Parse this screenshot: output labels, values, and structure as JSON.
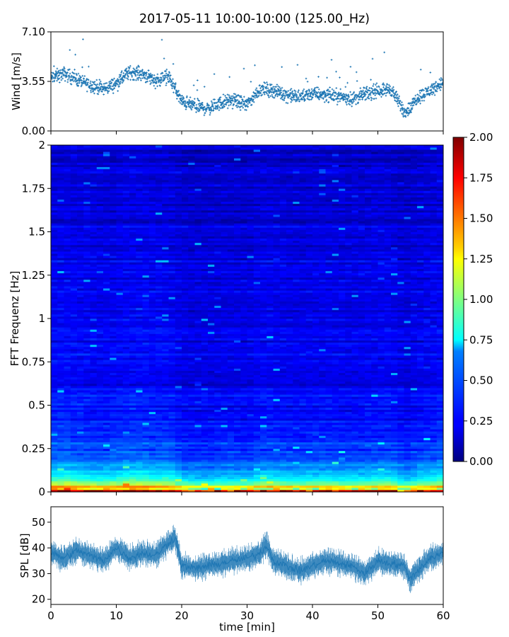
{
  "figure": {
    "title": "2017-05-11 10:00-10:00 (125.00_Hz)"
  },
  "colors": {
    "series": "#1f77b4",
    "colormap": "jet"
  },
  "chart_data": [
    {
      "id": "wind",
      "type": "scatter",
      "ylabel": "Wind [m/s]",
      "xlabel": "",
      "xlim": [
        0,
        60
      ],
      "ylim": [
        0,
        7.1
      ],
      "yticks": [
        0.0,
        3.55,
        7.1
      ],
      "ytick_labels": [
        "0.00",
        "3.55",
        "7.10"
      ],
      "xticks": [
        0,
        10,
        20,
        30,
        40,
        50,
        60
      ],
      "xtick_labels_visible": false,
      "marker": "+",
      "series": [
        {
          "x": [
            0,
            2,
            4,
            6,
            8,
            10,
            12,
            14,
            16,
            18,
            19,
            20,
            22,
            24,
            26,
            28,
            30,
            32,
            34,
            36,
            38,
            40,
            42,
            44,
            46,
            48,
            50,
            52,
            54,
            55,
            56,
            58,
            60
          ],
          "y": [
            3.8,
            4.1,
            3.7,
            3.3,
            3.0,
            3.4,
            4.2,
            4.1,
            3.6,
            3.9,
            3.0,
            2.1,
            1.8,
            1.6,
            2.0,
            2.2,
            1.9,
            3.0,
            2.9,
            2.6,
            2.4,
            2.7,
            2.6,
            2.5,
            2.3,
            2.6,
            2.9,
            3.0,
            1.4,
            1.6,
            2.4,
            2.9,
            3.5
          ]
        }
      ]
    },
    {
      "id": "spectrogram",
      "type": "heatmap",
      "ylabel": "FFT Frequenz [Hz]",
      "xlabel": "",
      "xlim": [
        0,
        60
      ],
      "ylim": [
        0,
        2
      ],
      "yticks": [
        0,
        0.25,
        0.5,
        0.75,
        1,
        1.25,
        1.5,
        1.75,
        2
      ],
      "ytick_labels": [
        "0",
        "0.25",
        "0.5",
        "0.75",
        "1",
        "1.25",
        "1.5",
        "1.75",
        "2"
      ],
      "colorbar": {
        "range": [
          0,
          2
        ],
        "ticks": [
          "0.00",
          "0.25",
          "0.50",
          "0.75",
          "1.00",
          "1.25",
          "1.50",
          "1.75",
          "2.00"
        ]
      },
      "profile": {
        "frequency": [
          0.0,
          0.02,
          0.05,
          0.1,
          0.15,
          0.2,
          0.3,
          0.5,
          1.0,
          1.5,
          2.0
        ],
        "level": [
          1.7,
          1.2,
          0.85,
          0.6,
          0.48,
          0.38,
          0.3,
          0.24,
          0.2,
          0.17,
          0.15
        ]
      }
    },
    {
      "id": "spl",
      "type": "line",
      "ylabel": "SPL [dB]",
      "xlabel": "time [min]",
      "xlim": [
        0,
        60
      ],
      "ylim": [
        18,
        56
      ],
      "yticks": [
        20,
        30,
        40,
        50
      ],
      "ytick_labels": [
        "20",
        "30",
        "40",
        "50"
      ],
      "xticks": [
        0,
        10,
        20,
        30,
        40,
        50,
        60
      ],
      "xtick_labels": [
        "0",
        "10",
        "20",
        "30",
        "40",
        "50",
        "60"
      ],
      "series": [
        {
          "x": [
            0,
            2,
            4,
            6,
            8,
            10,
            12,
            14,
            16,
            18,
            19,
            20,
            22,
            24,
            26,
            28,
            30,
            32,
            33,
            34,
            36,
            38,
            40,
            42,
            44,
            46,
            48,
            50,
            52,
            54,
            55,
            56,
            58,
            60
          ],
          "y": [
            38,
            36,
            39,
            37,
            35,
            40,
            36,
            38,
            37,
            42,
            44,
            33,
            32,
            33,
            34,
            35,
            36,
            38,
            41,
            35,
            33,
            31,
            33,
            35,
            34,
            33,
            30,
            35,
            34,
            33,
            28,
            31,
            36,
            38
          ]
        }
      ]
    }
  ]
}
